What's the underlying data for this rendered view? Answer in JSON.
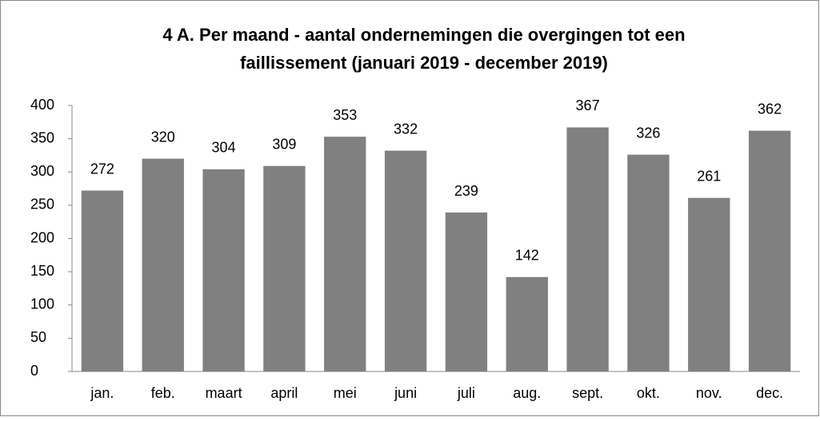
{
  "chart_data": {
    "type": "bar",
    "title": [
      "4 A. Per maand -  aantal ondernemingen die overgingen tot een",
      "faillissement (januari 2019 - december 2019)"
    ],
    "categories": [
      "jan.",
      "feb.",
      "maart",
      "april",
      "mei",
      "juni",
      "juli",
      "aug.",
      "sept.",
      "okt.",
      "nov.",
      "dec."
    ],
    "values": [
      272,
      320,
      304,
      309,
      353,
      332,
      239,
      142,
      367,
      326,
      261,
      362
    ],
    "color": "#808080",
    "ylim": [
      0,
      400
    ],
    "yticks": [
      0,
      50,
      100,
      150,
      200,
      250,
      300,
      350,
      400
    ],
    "grid": false
  }
}
